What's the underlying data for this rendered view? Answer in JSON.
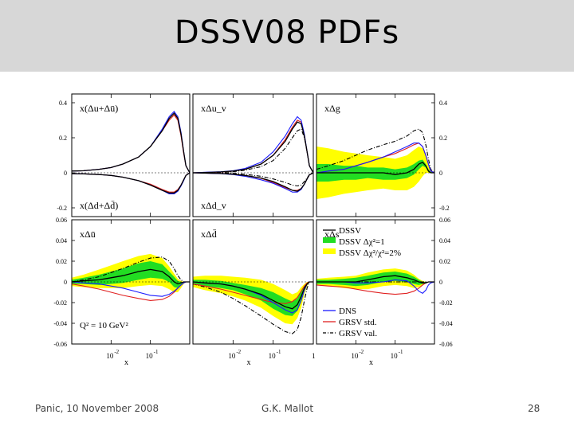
{
  "slide": {
    "title": "DSSV08 PDFs",
    "footer_left": "Panic, 10 November 2008",
    "footer_center": "G.K. Mallot",
    "footer_right": "28"
  },
  "colors": {
    "band_yellow": "#ffff00",
    "band_green": "#22dd22",
    "dssv": "#000000",
    "dns": "#1a1aff",
    "grsv_std": "#e02020",
    "grsv_val": "#000000",
    "title_bar": "#d7d7d7"
  },
  "chart_data": {
    "type": "line",
    "xscale": "log",
    "xlim": [
      0.001,
      1
    ],
    "x_ticks": [
      "10",
      "-2",
      "10",
      "-1",
      "1"
    ],
    "xlabel": "x",
    "panels": [
      {
        "id": "u",
        "label_top": "x(Δu+Δū)",
        "label_bottom": "x(Δd+Δd̄)",
        "ylim": [
          -0.25,
          0.45
        ],
        "yticks": [
          "0.4",
          "0.2",
          "0",
          "-0.2"
        ],
        "side": "left"
      },
      {
        "id": "uv",
        "label_top": "xΔu_v",
        "label_bottom": "xΔd_v",
        "ylim": [
          -0.25,
          0.45
        ],
        "side": "none"
      },
      {
        "id": "g",
        "label_top": "xΔg",
        "ylim": [
          -0.25,
          0.45
        ],
        "yticks": [
          "0.4",
          "0.2",
          "0",
          "-0.2"
        ],
        "side": "right"
      },
      {
        "id": "ubar",
        "label_top": "xΔū",
        "label_note": "Q² = 10 GeV²",
        "ylim": [
          -0.06,
          0.06
        ],
        "yticks": [
          "0.06",
          "0.04",
          "0.02",
          "0",
          "-0.02",
          "-0.04",
          "-0.06"
        ],
        "side": "left"
      },
      {
        "id": "dbar",
        "label_top": "xΔd̄",
        "ylim": [
          -0.06,
          0.06
        ],
        "side": "none"
      },
      {
        "id": "s",
        "label_top": "xΔs",
        "ylim": [
          -0.06,
          0.06
        ],
        "yticks": [
          "0.06",
          "0.04",
          "0.02",
          "0",
          "-0.02",
          "-0.04",
          "-0.06"
        ],
        "side": "right"
      }
    ],
    "legend": [
      {
        "name": "DSSV",
        "style": "line",
        "color": "#000000"
      },
      {
        "name": "DSSV Δχ²=1",
        "style": "band",
        "color": "#22dd22"
      },
      {
        "name": "DSSV Δχ²/χ²=2%",
        "style": "band",
        "color": "#ffff00"
      },
      {
        "name": "DNS",
        "style": "line",
        "color": "#1a1aff"
      },
      {
        "name": "GRSV std.",
        "style": "line",
        "color": "#e02020"
      },
      {
        "name": "GRSV val.",
        "style": "dashdot",
        "color": "#000000"
      }
    ],
    "series": {
      "x": [
        0.001,
        0.002,
        0.005,
        0.01,
        0.02,
        0.05,
        0.1,
        0.2,
        0.3,
        0.4,
        0.5,
        0.6,
        0.7,
        0.8,
        1.0
      ],
      "u_plus": {
        "DSSV": [
          0.01,
          0.012,
          0.02,
          0.03,
          0.05,
          0.09,
          0.15,
          0.24,
          0.31,
          0.34,
          0.31,
          0.22,
          0.12,
          0.04,
          0.0
        ],
        "DNS": [
          0.01,
          0.012,
          0.02,
          0.03,
          0.05,
          0.09,
          0.15,
          0.25,
          0.32,
          0.35,
          0.32,
          0.23,
          0.12,
          0.04,
          0.0
        ],
        "GRSV_std": [
          0.01,
          0.012,
          0.02,
          0.03,
          0.05,
          0.09,
          0.15,
          0.24,
          0.3,
          0.33,
          0.3,
          0.21,
          0.11,
          0.04,
          0.0
        ]
      },
      "d_plus": {
        "DSSV": [
          -0.005,
          -0.006,
          -0.01,
          -0.015,
          -0.025,
          -0.045,
          -0.07,
          -0.1,
          -0.115,
          -0.115,
          -0.1,
          -0.07,
          -0.04,
          -0.015,
          0.0
        ],
        "DNS": [
          -0.005,
          -0.006,
          -0.01,
          -0.015,
          -0.025,
          -0.045,
          -0.07,
          -0.1,
          -0.12,
          -0.12,
          -0.105,
          -0.075,
          -0.045,
          -0.015,
          0.0
        ],
        "GRSV_std": [
          -0.005,
          -0.006,
          -0.01,
          -0.015,
          -0.025,
          -0.045,
          -0.065,
          -0.095,
          -0.11,
          -0.11,
          -0.095,
          -0.07,
          -0.04,
          -0.015,
          0.0
        ]
      },
      "u_v": {
        "DSSV": [
          0.0,
          0.002,
          0.005,
          0.01,
          0.02,
          0.05,
          0.1,
          0.18,
          0.25,
          0.29,
          0.28,
          0.21,
          0.12,
          0.04,
          0.0
        ],
        "DNS": [
          0.0,
          0.003,
          0.006,
          0.012,
          0.025,
          0.06,
          0.12,
          0.21,
          0.28,
          0.32,
          0.3,
          0.22,
          0.12,
          0.04,
          0.0
        ],
        "GRSV_std": [
          0.0,
          0.002,
          0.004,
          0.01,
          0.02,
          0.05,
          0.1,
          0.19,
          0.26,
          0.3,
          0.29,
          0.21,
          0.12,
          0.04,
          0.0
        ],
        "GRSV_val": [
          0.0,
          0.0,
          0.002,
          0.006,
          0.015,
          0.035,
          0.07,
          0.14,
          0.2,
          0.24,
          0.25,
          0.2,
          0.12,
          0.04,
          0.0
        ]
      },
      "d_v": {
        "DSSV": [
          0.0,
          -0.002,
          -0.004,
          -0.008,
          -0.015,
          -0.03,
          -0.05,
          -0.08,
          -0.1,
          -0.105,
          -0.09,
          -0.065,
          -0.035,
          -0.012,
          0.0
        ],
        "DNS": [
          0.0,
          -0.002,
          -0.005,
          -0.01,
          -0.02,
          -0.04,
          -0.06,
          -0.09,
          -0.11,
          -0.11,
          -0.095,
          -0.065,
          -0.035,
          -0.012,
          0.0
        ],
        "GRSV_std": [
          0.0,
          -0.002,
          -0.004,
          -0.008,
          -0.015,
          -0.032,
          -0.055,
          -0.085,
          -0.1,
          -0.1,
          -0.09,
          -0.065,
          -0.035,
          -0.012,
          0.0
        ],
        "GRSV_val": [
          0.0,
          0.0,
          -0.001,
          -0.003,
          -0.008,
          -0.02,
          -0.035,
          -0.055,
          -0.07,
          -0.075,
          -0.07,
          -0.05,
          -0.03,
          -0.01,
          0.0
        ]
      },
      "g": {
        "DSSV": [
          0.0,
          0.0,
          0.0,
          0.0,
          0.0,
          0.0,
          -0.01,
          0.0,
          0.02,
          0.05,
          0.06,
          0.04,
          0.01,
          0.0,
          0.0
        ],
        "band1_hi": [
          0.05,
          0.05,
          0.04,
          0.04,
          0.03,
          0.03,
          0.02,
          0.03,
          0.05,
          0.07,
          0.075,
          0.05,
          0.02,
          0.005,
          0.0
        ],
        "band1_lo": [
          -0.05,
          -0.05,
          -0.04,
          -0.04,
          -0.03,
          -0.04,
          -0.04,
          -0.03,
          -0.01,
          0.02,
          0.04,
          0.03,
          0.005,
          0.0,
          0.0
        ],
        "band2_hi": [
          0.15,
          0.14,
          0.12,
          0.11,
          0.1,
          0.09,
          0.08,
          0.1,
          0.13,
          0.15,
          0.14,
          0.1,
          0.04,
          0.01,
          0.0
        ],
        "band2_lo": [
          -0.15,
          -0.14,
          -0.12,
          -0.11,
          -0.1,
          -0.09,
          -0.1,
          -0.1,
          -0.08,
          -0.05,
          -0.02,
          0.0,
          0.0,
          0.0,
          0.0
        ],
        "DNS": [
          0.0,
          0.01,
          0.02,
          0.04,
          0.06,
          0.09,
          0.12,
          0.15,
          0.17,
          0.17,
          0.15,
          0.1,
          0.05,
          0.01,
          0.0
        ],
        "GRSV_std": [
          0.0,
          0.01,
          0.02,
          0.04,
          0.06,
          0.09,
          0.11,
          0.14,
          0.16,
          0.17,
          0.15,
          0.1,
          0.05,
          0.01,
          0.0
        ],
        "GRSV_val": [
          0.02,
          0.04,
          0.07,
          0.1,
          0.13,
          0.16,
          0.18,
          0.21,
          0.24,
          0.25,
          0.23,
          0.16,
          0.08,
          0.02,
          0.0
        ]
      },
      "ubar": {
        "DSSV": [
          0.0,
          0.001,
          0.002,
          0.004,
          0.006,
          0.01,
          0.012,
          0.01,
          0.005,
          0.0,
          -0.002,
          -0.001,
          0.0,
          0.0,
          0.0
        ],
        "band1_hi": [
          0.002,
          0.004,
          0.007,
          0.01,
          0.013,
          0.018,
          0.02,
          0.017,
          0.01,
          0.005,
          0.001,
          0.0,
          0.0,
          0.0,
          0.0
        ],
        "band1_lo": [
          -0.002,
          -0.002,
          -0.003,
          -0.002,
          -0.001,
          0.002,
          0.004,
          0.003,
          0.0,
          -0.005,
          -0.006,
          -0.003,
          0.0,
          0.0,
          0.0
        ],
        "band2_hi": [
          0.004,
          0.007,
          0.012,
          0.016,
          0.02,
          0.025,
          0.027,
          0.023,
          0.015,
          0.008,
          0.003,
          0.001,
          0.0,
          0.0,
          0.0
        ],
        "band2_lo": [
          -0.004,
          -0.005,
          -0.006,
          -0.006,
          -0.006,
          -0.004,
          -0.003,
          -0.004,
          -0.007,
          -0.01,
          -0.01,
          -0.006,
          -0.002,
          0.0,
          0.0
        ],
        "DNS": [
          0.0,
          -0.001,
          -0.002,
          -0.004,
          -0.006,
          -0.01,
          -0.013,
          -0.014,
          -0.012,
          -0.009,
          -0.006,
          -0.003,
          -0.001,
          0.0,
          0.0
        ],
        "GRSV_std": [
          -0.002,
          -0.004,
          -0.007,
          -0.01,
          -0.013,
          -0.016,
          -0.018,
          -0.017,
          -0.014,
          -0.01,
          -0.006,
          -0.003,
          -0.001,
          0.0,
          0.0
        ],
        "GRSV_val": [
          0.0,
          0.002,
          0.005,
          0.009,
          0.013,
          0.019,
          0.023,
          0.024,
          0.02,
          0.013,
          0.006,
          0.002,
          0.0,
          0.0,
          0.0
        ]
      },
      "dbar": {
        "DSSV": [
          0.0,
          -0.001,
          -0.002,
          -0.004,
          -0.007,
          -0.012,
          -0.018,
          -0.024,
          -0.026,
          -0.022,
          -0.014,
          -0.006,
          -0.002,
          0.0,
          0.0
        ],
        "band1_hi": [
          0.002,
          0.002,
          0.001,
          -0.001,
          -0.003,
          -0.006,
          -0.01,
          -0.016,
          -0.019,
          -0.016,
          -0.009,
          -0.004,
          -0.001,
          0.0,
          0.0
        ],
        "band1_lo": [
          -0.002,
          -0.004,
          -0.006,
          -0.008,
          -0.012,
          -0.018,
          -0.026,
          -0.032,
          -0.033,
          -0.028,
          -0.019,
          -0.009,
          -0.003,
          0.0,
          0.0
        ],
        "band2_hi": [
          0.005,
          0.006,
          0.006,
          0.005,
          0.004,
          0.002,
          -0.002,
          -0.008,
          -0.012,
          -0.01,
          -0.005,
          -0.002,
          0.0,
          0.0,
          0.0
        ],
        "band2_lo": [
          -0.005,
          -0.008,
          -0.011,
          -0.014,
          -0.018,
          -0.025,
          -0.033,
          -0.04,
          -0.041,
          -0.035,
          -0.025,
          -0.012,
          -0.004,
          0.0,
          0.0
        ],
        "DNS": [
          0.0,
          -0.001,
          -0.002,
          -0.004,
          -0.007,
          -0.013,
          -0.02,
          -0.027,
          -0.03,
          -0.027,
          -0.018,
          -0.008,
          -0.002,
          0.0,
          0.0
        ],
        "GRSV_std": [
          -0.002,
          -0.004,
          -0.007,
          -0.01,
          -0.013,
          -0.017,
          -0.02,
          -0.021,
          -0.019,
          -0.015,
          -0.009,
          -0.004,
          -0.001,
          0.0,
          0.0
        ],
        "GRSV_val": [
          -0.002,
          -0.005,
          -0.01,
          -0.016,
          -0.023,
          -0.033,
          -0.041,
          -0.048,
          -0.05,
          -0.046,
          -0.034,
          -0.018,
          -0.006,
          0.0,
          0.0
        ]
      },
      "s": {
        "DSSV": [
          0.0,
          0.0,
          0.0,
          0.0,
          0.002,
          0.005,
          0.006,
          0.004,
          0.002,
          0.0,
          -0.001,
          -0.001,
          0.0,
          0.0,
          0.0
        ],
        "band1_hi": [
          0.002,
          0.002,
          0.003,
          0.004,
          0.006,
          0.009,
          0.01,
          0.008,
          0.005,
          0.002,
          0.0,
          0.0,
          0.0,
          0.0,
          0.0
        ],
        "band1_lo": [
          -0.002,
          -0.002,
          -0.003,
          -0.004,
          -0.003,
          0.0,
          0.001,
          0.0,
          -0.002,
          -0.003,
          -0.002,
          -0.001,
          0.0,
          0.0,
          0.0
        ],
        "band2_hi": [
          0.003,
          0.004,
          0.005,
          0.006,
          0.009,
          0.012,
          0.013,
          0.011,
          0.007,
          0.003,
          0.001,
          0.0,
          0.0,
          0.0,
          0.0
        ],
        "band2_lo": [
          -0.003,
          -0.004,
          -0.006,
          -0.007,
          -0.007,
          -0.004,
          -0.003,
          -0.004,
          -0.006,
          -0.005,
          -0.003,
          -0.001,
          0.0,
          0.0,
          0.0
        ],
        "DNS": [
          0.0,
          0.0,
          0.0,
          -0.001,
          -0.001,
          0.0,
          0.002,
          0.001,
          -0.004,
          -0.009,
          -0.011,
          -0.008,
          -0.003,
          -0.001,
          0.0
        ],
        "GRSV_std": [
          -0.003,
          -0.004,
          -0.005,
          -0.007,
          -0.009,
          -0.011,
          -0.012,
          -0.011,
          -0.009,
          -0.006,
          -0.003,
          -0.001,
          0.0,
          0.0,
          0.0
        ],
        "GRSV_val": [
          0.0,
          0.0,
          0.0,
          0.0,
          0.0,
          0.0,
          0.0,
          0.0,
          0.0,
          0.0,
          0.0,
          0.0,
          0.0,
          0.0,
          0.0
        ]
      }
    }
  }
}
